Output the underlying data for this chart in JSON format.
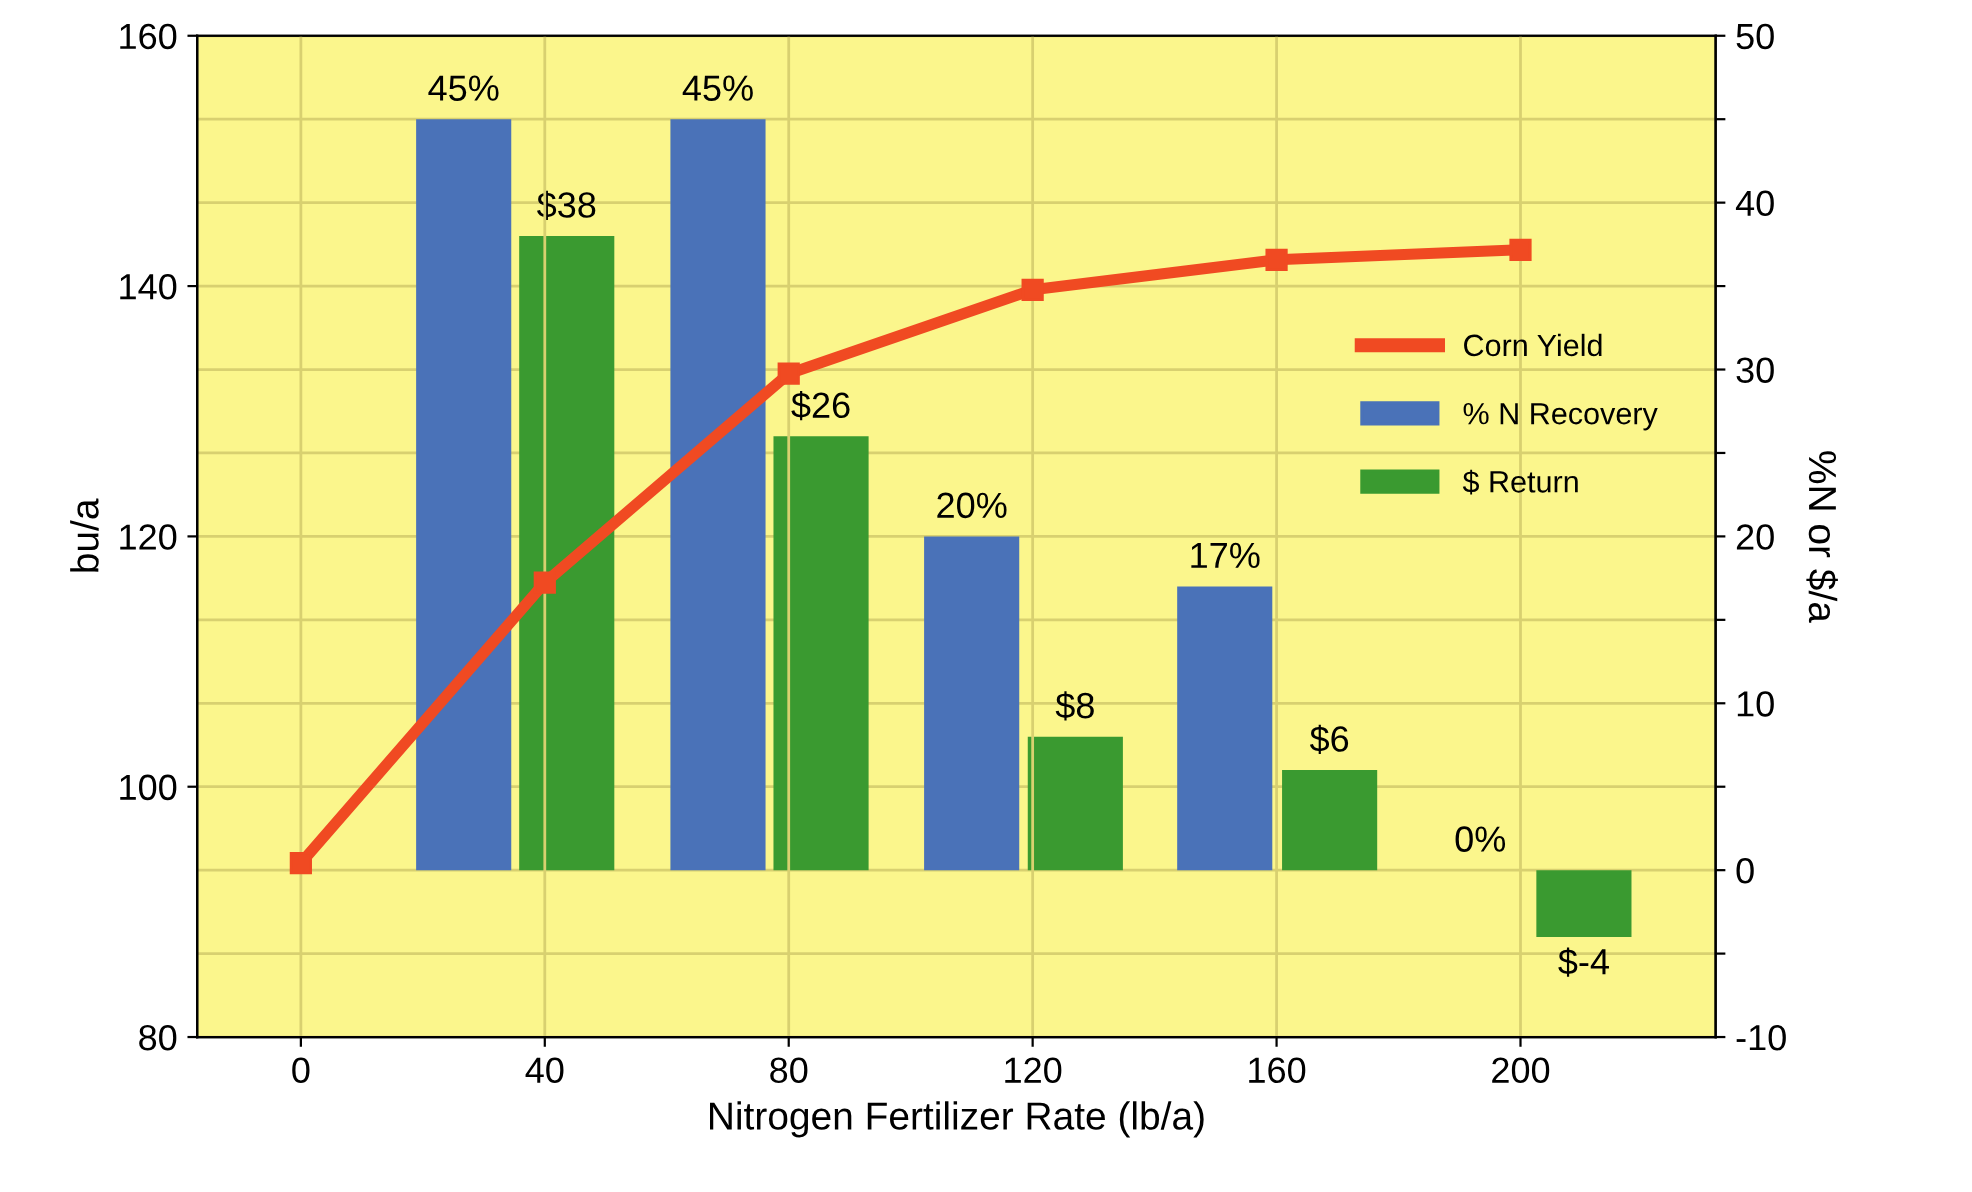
{
  "chart_data": {
    "type": "bar",
    "xlabel": "Nitrogen Fertilizer Rate (lb/a)",
    "ylabel": "bu/a",
    "y2label": "%N or $/a",
    "xlim": [
      -17,
      232
    ],
    "xticks": [
      0,
      40,
      80,
      120,
      160,
      200
    ],
    "ylim": [
      80,
      160
    ],
    "yticks": [
      80,
      100,
      120,
      140,
      160
    ],
    "y2lim": [
      -10,
      50
    ],
    "y2ticks": [
      -10,
      {
        "value": -5,
        "label": null
      },
      0,
      {
        "value": 5,
        "label": null
      },
      10,
      {
        "value": 15,
        "label": null
      },
      20,
      {
        "value": 25,
        "label": null
      },
      30,
      {
        "value": 35,
        "label": null
      },
      40,
      {
        "value": 45,
        "label": null
      },
      50
    ],
    "grid": true,
    "legend": "right",
    "marker": "square",
    "line_style": "solid",
    "series": [
      {
        "name": "Corn Yield",
        "type": "line",
        "color": "#f04a22",
        "x": [
          0,
          40,
          80,
          120,
          160,
          200
        ],
        "values": [
          93.9,
          116.3,
          133,
          139.7,
          142.1,
          142.9
        ]
      },
      {
        "name": "% N Recovery",
        "axis": "y2",
        "color": "#4a72b8",
        "x": [
          26.7,
          68.4,
          110,
          151.5,
          193.4
        ],
        "values": [
          45,
          45,
          20,
          17,
          0
        ],
        "value_labels": [
          "45%",
          "45%",
          "20%",
          "17%",
          "0%"
        ]
      },
      {
        "name": "$ Return",
        "axis": "y2",
        "color": "#3a9a30",
        "x": [
          43.6,
          85.3,
          127,
          168.7,
          210.4
        ],
        "values": [
          38,
          26,
          8,
          6,
          -4
        ],
        "value_labels": [
          "$38",
          "$26",
          "$8",
          "$6",
          "$-4"
        ]
      }
    ]
  }
}
